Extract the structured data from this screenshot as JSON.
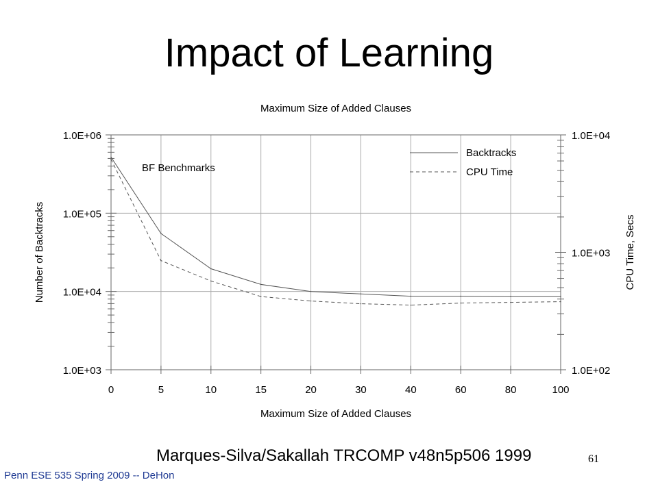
{
  "slide": {
    "title": "Impact of Learning",
    "citation": "Marques-Silva/Sakallah TRCOMP v48n5p506 1999",
    "page_number": "61",
    "footer": "Penn ESE 535 Spring 2009 -- DeHon"
  },
  "chart_data": {
    "type": "line",
    "title": "Maximum Size of Added Clauses",
    "xlabel": "Maximum Size of Added Clauses",
    "ylabel": "Number of Backtracks",
    "y2label": "CPU Time, Secs",
    "annotation": "BF Benchmarks",
    "categories": [
      "0",
      "5",
      "10",
      "15",
      "20",
      "30",
      "40",
      "60",
      "80",
      "100"
    ],
    "y_scale": "log",
    "ylim": [
      1000,
      1000000
    ],
    "yticks": [
      "1.0E+03",
      "1.0E+04",
      "1.0E+05",
      "1.0E+06"
    ],
    "y2_scale": "log",
    "y2lim": [
      100,
      10000
    ],
    "y2ticks": [
      "1.0E+02",
      "1.0E+03",
      "1.0E+04"
    ],
    "legend_position": "top-right",
    "grid": "horizontal",
    "series": [
      {
        "name": "Backtracks",
        "axis": "left",
        "style": "solid",
        "values": [
          520000,
          55000,
          19500,
          12300,
          10000,
          9300,
          8700,
          8700,
          8600,
          8600
        ]
      },
      {
        "name": "CPU Time",
        "axis": "right",
        "style": "dashed",
        "values": [
          6200,
          850,
          570,
          420,
          385,
          365,
          355,
          370,
          375,
          380
        ]
      }
    ]
  }
}
